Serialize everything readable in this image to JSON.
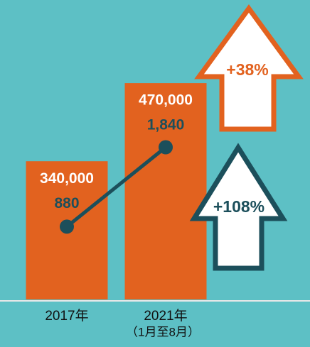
{
  "chart_data": {
    "type": "bar",
    "categories": [
      "2017年",
      "2021年"
    ],
    "category_sublabels": [
      null,
      "（1月至8月）"
    ],
    "series": [
      {
        "type": "bar",
        "color": "#e2621f",
        "values": [
          340000,
          470000
        ],
        "value_labels": [
          "340,000",
          "470,000"
        ]
      },
      {
        "type": "line",
        "axis": "y2",
        "color": "#1c4f5b",
        "values": [
          880,
          1840
        ],
        "value_labels": [
          "880",
          "1,840"
        ]
      }
    ],
    "ylim": [
      110000,
      600000
    ],
    "y2lim": [
      0,
      3560
    ],
    "annotations": [
      "+38%",
      "+108%"
    ]
  }
}
